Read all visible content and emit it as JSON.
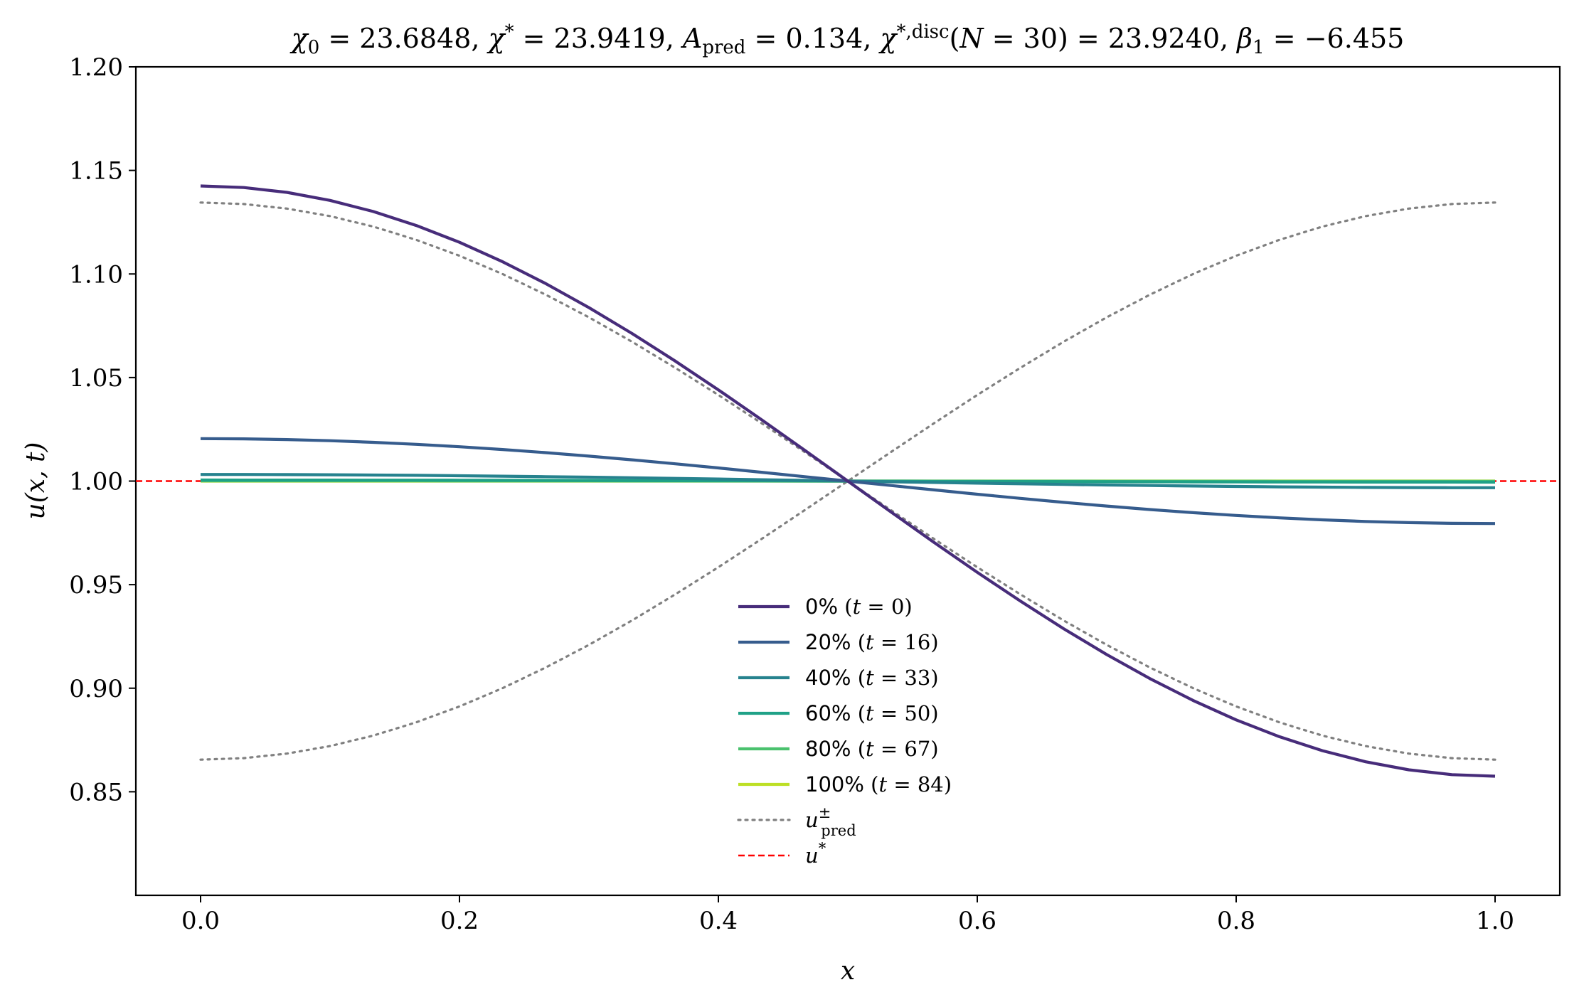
{
  "chart_data": {
    "type": "line",
    "title": "χ₀ = 23.6848,  χ* = 23.9419,  A_pred = 0.134,  χ*,disc(N = 30) = 23.9240,  β₁ = −6.455",
    "title_parts": {
      "chi0": "23.6848",
      "chistar": "23.9419",
      "apred": "0.134",
      "chidisc_n": "30",
      "chidisc": "23.9240",
      "beta1": "−6.455"
    },
    "xlabel": "x",
    "ylabel": "u(x, t)",
    "xlim": [
      -0.05,
      1.05
    ],
    "ylim": [
      0.8,
      1.2
    ],
    "xticks": [
      "0.0",
      "0.2",
      "0.4",
      "0.6",
      "0.8",
      "1.0"
    ],
    "yticks": [
      "0.85",
      "0.90",
      "0.95",
      "1.00",
      "1.05",
      "1.10",
      "1.15",
      "1.20"
    ],
    "grid": false,
    "legend_position": "lower-center",
    "legend_entries": [
      {
        "key": "0",
        "label": "0% (t = 0)",
        "pct": "0%",
        "t": "0"
      },
      {
        "key": "20",
        "label": "20% (t = 16)",
        "pct": "20%",
        "t": "16"
      },
      {
        "key": "40",
        "label": "40% (t = 33)",
        "pct": "40%",
        "t": "33"
      },
      {
        "key": "60",
        "label": "60% (t = 50)",
        "pct": "60%",
        "t": "50"
      },
      {
        "key": "80",
        "label": "80% (t = 67)",
        "pct": "80%",
        "t": "67"
      },
      {
        "key": "100",
        "label": "100% (t = 84)",
        "pct": "100%",
        "t": "84"
      },
      {
        "key": "pred",
        "label": "u±pred"
      },
      {
        "key": "ustar",
        "label": "u*"
      }
    ],
    "x_grid_n": 31,
    "series": [
      {
        "key": "0",
        "color": "#472c7a",
        "amplitude": 0.1425,
        "style": "solid"
      },
      {
        "key": "20",
        "color": "#365c8d",
        "amplitude": 0.0205,
        "style": "solid"
      },
      {
        "key": "40",
        "color": "#26828e",
        "amplitude": 0.0032,
        "style": "solid"
      },
      {
        "key": "60",
        "color": "#1fa187",
        "amplitude": 0.0005,
        "style": "solid"
      },
      {
        "key": "80",
        "color": "#4ac16d",
        "amplitude": 0.0001,
        "style": "solid"
      },
      {
        "key": "100",
        "color": "#bddf26",
        "amplitude": 0.0,
        "style": "solid"
      }
    ],
    "u_pred_plus_amplitude": 0.1345,
    "u_pred_minus_amplitude": -0.1345,
    "u_pred_color": "#808080",
    "u_star": 1.0,
    "u_star_color": "#ff0000"
  }
}
